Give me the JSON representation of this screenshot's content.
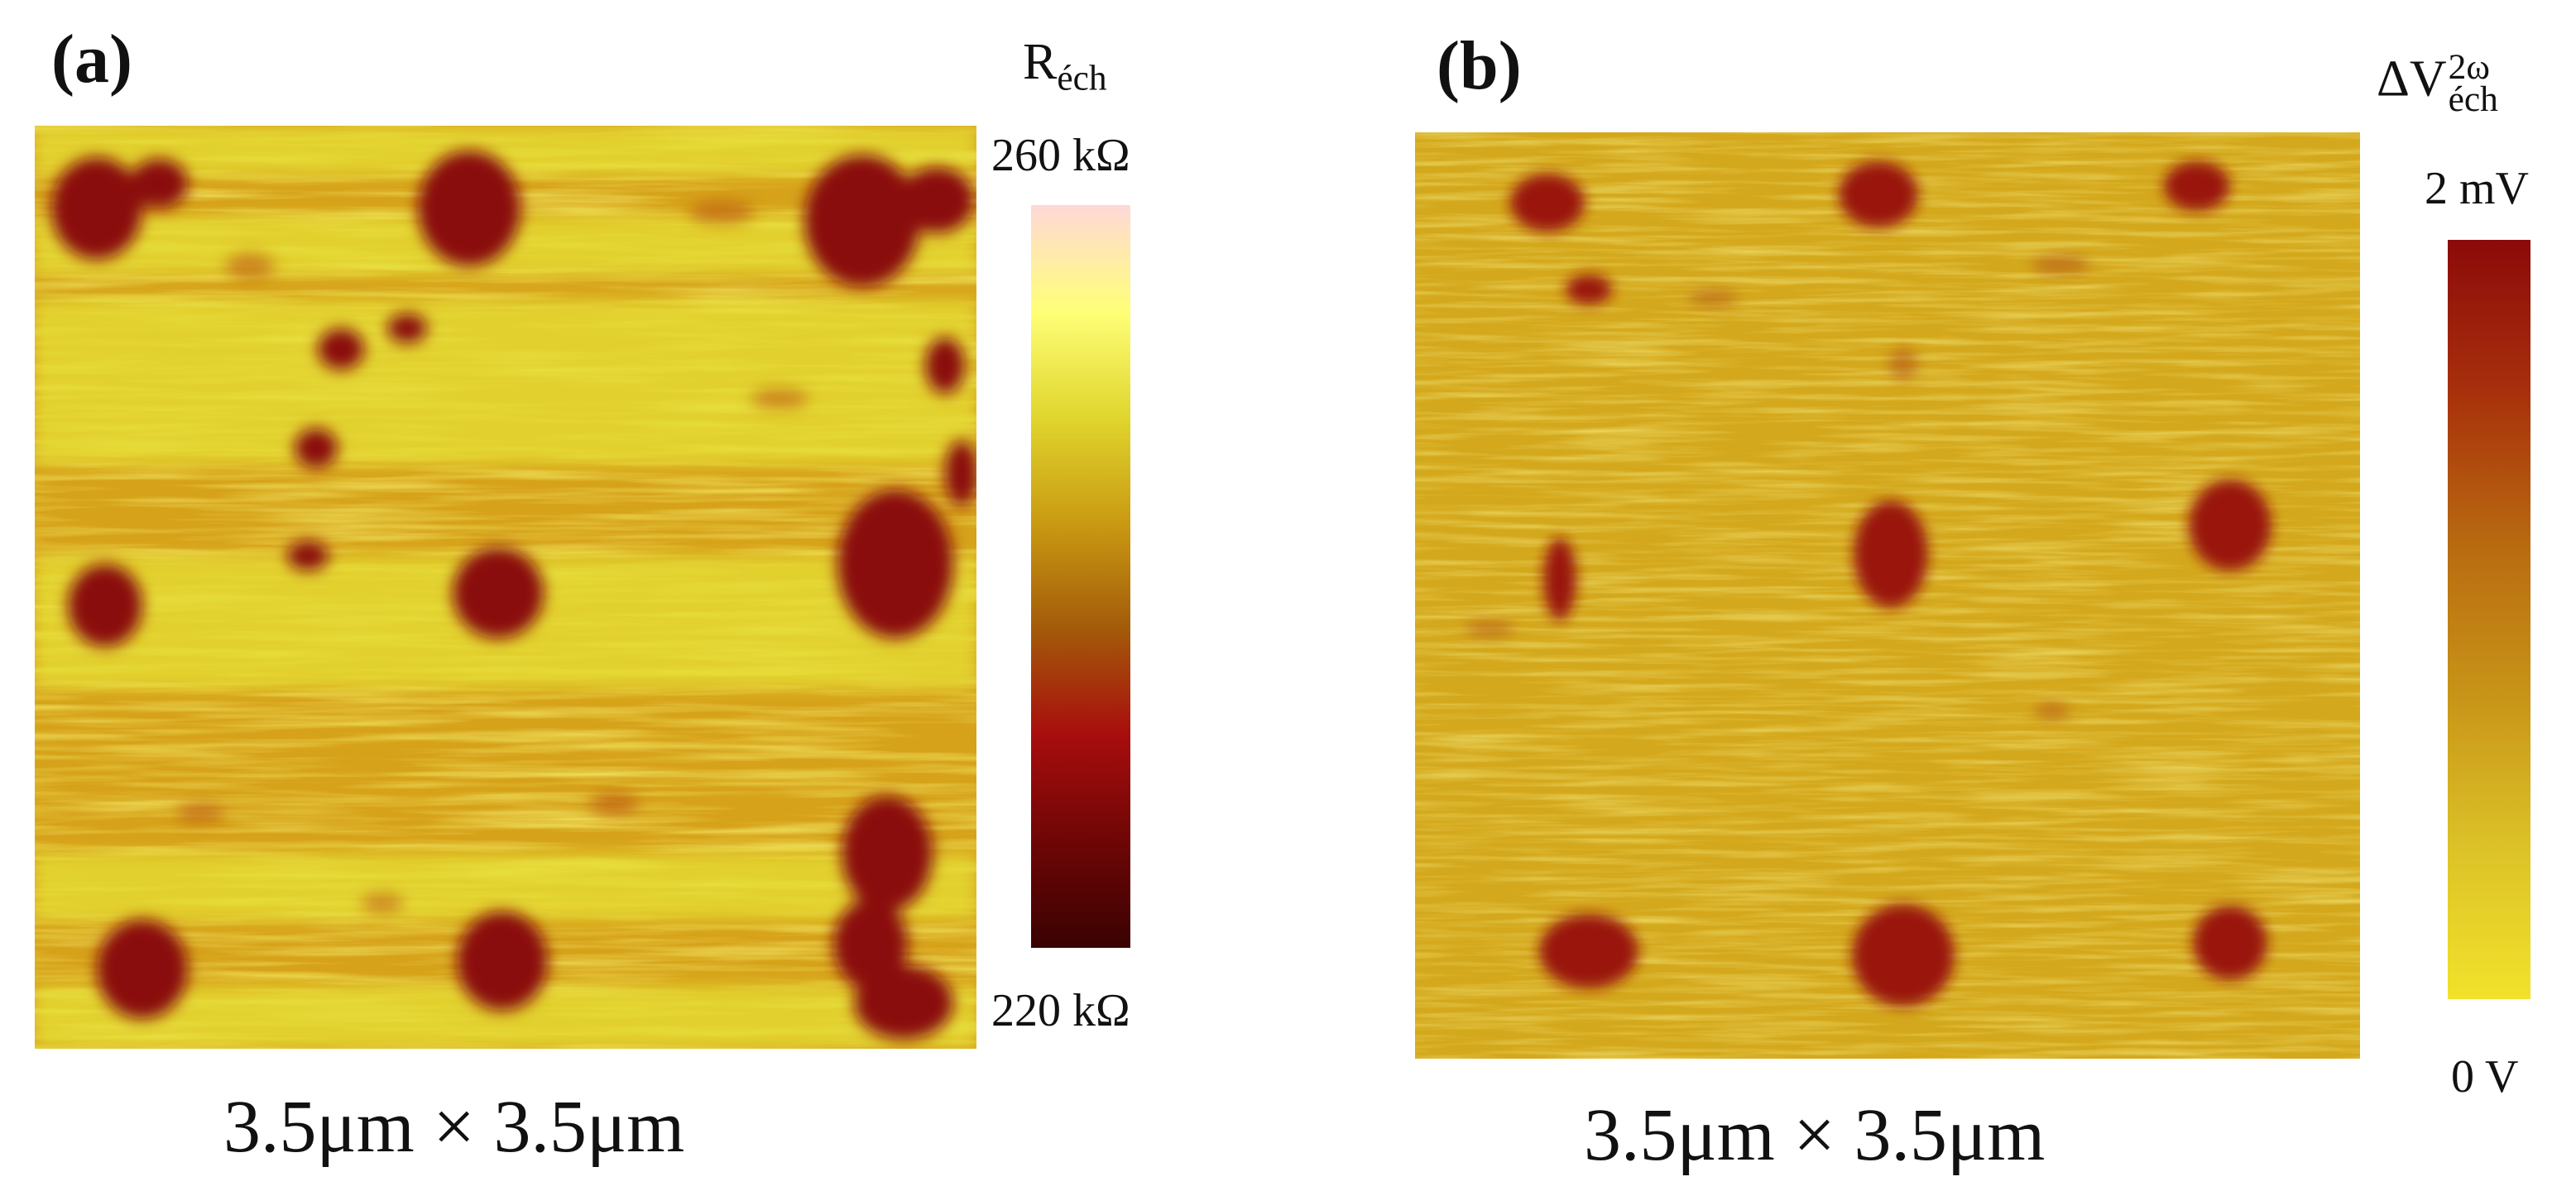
{
  "panels": [
    {
      "label": "(a)",
      "caption": "3.5μm × 3.5μm",
      "colorbar": {
        "title_main": "R",
        "title_sub": "éch",
        "max_label": "260 kΩ",
        "min_label": "220 kΩ",
        "colors": [
          "#3a0202",
          "#6e0606",
          "#a80d0d",
          "#a35a0a",
          "#c99a12",
          "#e0d62e",
          "#ffff78",
          "#ffd8d8"
        ]
      },
      "image_description_icon": "afm-resistance-map",
      "palette": {
        "background": "#d8a418",
        "light": "#e8e030",
        "dark": "#8a0c0c"
      }
    },
    {
      "label": "(b)",
      "caption": "3.5μm × 3.5μm",
      "colorbar": {
        "title_main": "ΔV",
        "title_sup": "2ω",
        "title_sub": "éch",
        "max_label": "2 mV",
        "min_label": "0 V",
        "colors": [
          "#f2e22a",
          "#dcc228",
          "#c89418",
          "#b86a10",
          "#a8300c",
          "#8c0a0a"
        ]
      },
      "image_description_icon": "afm-voltage-map",
      "palette": {
        "background": "#d4a81c",
        "light": "#e0c830",
        "dark": "#9a1410"
      }
    }
  ]
}
